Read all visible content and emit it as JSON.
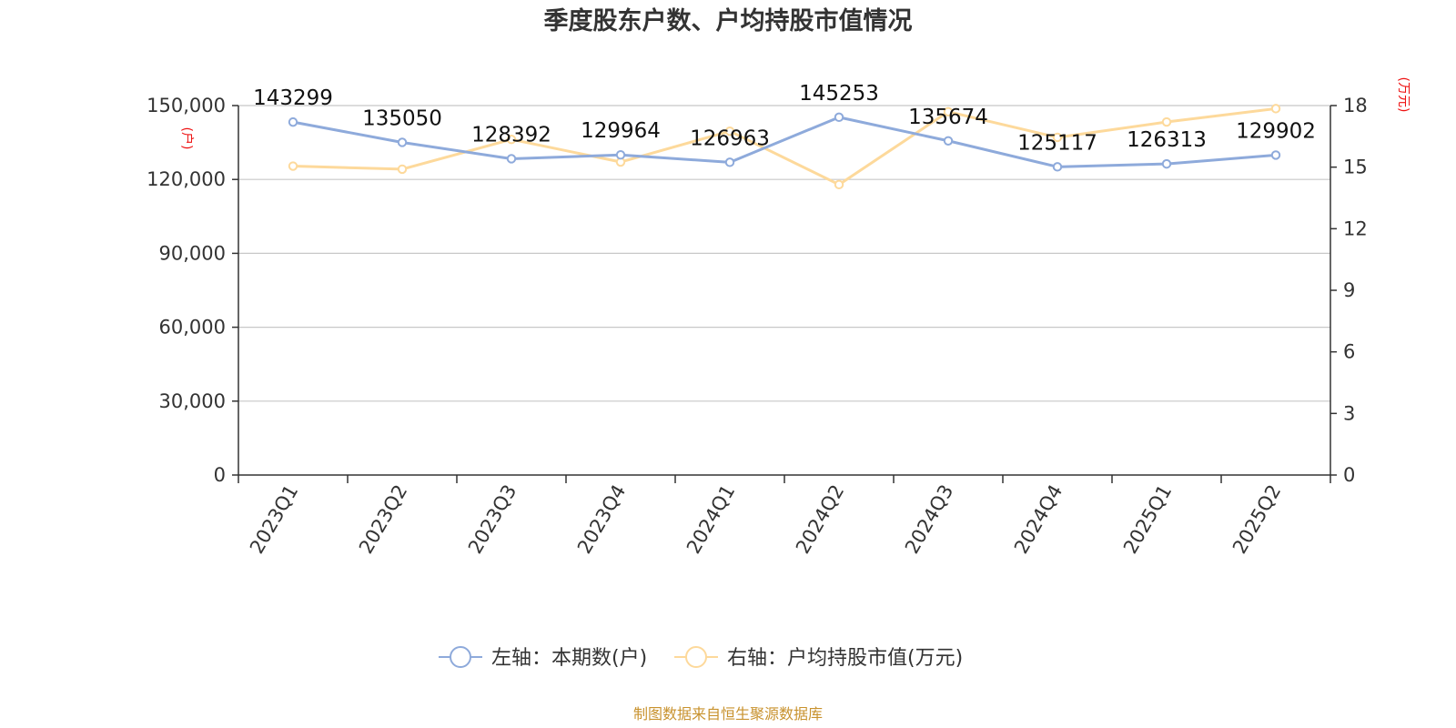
{
  "chart_data": {
    "type": "line",
    "title": "季度股东户数、户均持股市值情况",
    "categories": [
      "2023Q1",
      "2023Q2",
      "2023Q3",
      "2023Q4",
      "2024Q1",
      "2024Q2",
      "2024Q3",
      "2024Q4",
      "2025Q1",
      "2025Q2"
    ],
    "y_left": {
      "unit": "(户)",
      "ylim": [
        0,
        150000
      ],
      "ticks": [
        "0",
        "30,000",
        "60,000",
        "90,000",
        "120,000",
        "150,000"
      ],
      "tick_values": [
        0,
        30000,
        60000,
        90000,
        120000,
        150000
      ]
    },
    "y_right": {
      "unit": "(万元)",
      "ylim": [
        0,
        18
      ],
      "ticks": [
        "0",
        "3",
        "6",
        "9",
        "12",
        "15",
        "18"
      ],
      "tick_values": [
        0,
        3,
        6,
        9,
        12,
        15,
        18
      ]
    },
    "series": [
      {
        "name": "左轴：本期数(户)",
        "axis": "left",
        "color": "#8eaadb",
        "values": [
          143299,
          135050,
          128392,
          129964,
          126963,
          145253,
          135674,
          125117,
          126313,
          129902
        ],
        "labels": [
          "143299",
          "135050",
          "128392",
          "129964",
          "126963",
          "145253",
          "135674",
          "125117",
          "126313",
          "129902"
        ]
      },
      {
        "name": "右轴：户均持股市值(万元)",
        "axis": "right",
        "color": "#fdd99b",
        "values": [
          15.05,
          14.9,
          16.35,
          15.25,
          16.75,
          14.15,
          17.7,
          16.45,
          17.2,
          17.85
        ]
      }
    ],
    "grid": true,
    "legend_position": "bottom"
  },
  "source": "制图数据来自恒生聚源数据库"
}
